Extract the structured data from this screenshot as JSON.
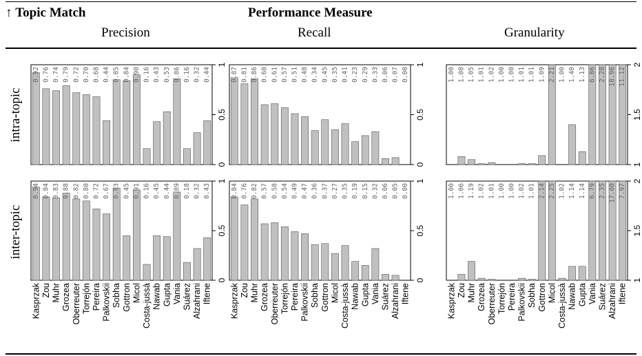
{
  "header": {
    "corner_arrow": "↑",
    "corner_label": "Topic Match",
    "group_label": "Performance Measure",
    "columns": [
      "Precision",
      "Recall",
      "Granularity"
    ]
  },
  "row_labels": [
    "intra-topic",
    "inter-topic"
  ],
  "chart_data": [
    {
      "type": "bar",
      "panel": "intra-topic / Precision",
      "categories": [
        "Kasprzak",
        "Zou",
        "Muhr",
        "Grozea",
        "Oberreuter",
        "Torrejón",
        "Pereira",
        "Palkovskii",
        "Sobha",
        "Gottron",
        "Micol",
        "Costa-jussà",
        "Nawab",
        "Gupta",
        "Vania",
        "Suárez",
        "Alzahrani",
        "Iftene"
      ],
      "values": [
        0.92,
        0.76,
        0.74,
        0.79,
        0.72,
        0.7,
        0.68,
        0.44,
        0.85,
        0.84,
        0.9,
        0.16,
        0.43,
        0.53,
        0.86,
        0.16,
        0.32,
        0.44
      ],
      "value_labels": [
        "0.92",
        "0.76",
        "0.74",
        "0.79",
        "0.72",
        "0.70",
        "0.68",
        "0.44",
        "0.85",
        "0.84",
        "0.90",
        "0.16",
        "0.43",
        "0.53",
        "0.86",
        "0.16",
        "0.32",
        "0.44"
      ],
      "ylim": [
        0,
        1
      ],
      "yticks": [
        "0",
        "0.5",
        "1"
      ]
    },
    {
      "type": "bar",
      "panel": "intra-topic / Recall",
      "categories": [
        "Kasprzak",
        "Zou",
        "Muhr",
        "Grozea",
        "Oberreuter",
        "Torrejón",
        "Pereira",
        "Palkovskii",
        "Sobha",
        "Gottron",
        "Micol",
        "Costa-jussà",
        "Nawab",
        "Gupta",
        "Vania",
        "Suárez",
        "Alzahrani",
        "Iftene"
      ],
      "values": [
        0.87,
        0.81,
        0.86,
        0.6,
        0.61,
        0.57,
        0.51,
        0.48,
        0.34,
        0.45,
        0.35,
        0.41,
        0.23,
        0.29,
        0.33,
        0.06,
        0.07,
        0.0
      ],
      "value_labels": [
        "0.87",
        "0.81",
        "0.86",
        "0.60",
        "0.61",
        "0.57",
        "0.51",
        "0.48",
        "0.34",
        "0.45",
        "0.35",
        "0.41",
        "0.23",
        "0.29",
        "0.33",
        "0.06",
        "0.07",
        "0.00"
      ],
      "ylim": [
        0,
        1
      ],
      "yticks": [
        "0",
        "0.5",
        "1"
      ]
    },
    {
      "type": "bar",
      "panel": "intra-topic / Granularity",
      "categories": [
        "Kasprzak",
        "Zou",
        "Muhr",
        "Grozea",
        "Oberreuter",
        "Torrejón",
        "Pereira",
        "Palkovskii",
        "Sobha",
        "Gottron",
        "Micol",
        "Costa-jussà",
        "Nawab",
        "Gupta",
        "Vania",
        "Suárez",
        "Alzahrani",
        "Iftene"
      ],
      "values": [
        1.0,
        1.08,
        1.05,
        1.01,
        1.02,
        1.0,
        1.0,
        1.01,
        1.01,
        1.09,
        2.21,
        1.0,
        1.4,
        1.13,
        6.86,
        2.28,
        18.96,
        11.12
      ],
      "value_labels": [
        "1.00",
        "1.08",
        "1.05",
        "1.01",
        "1.02",
        "1.00",
        "1.00",
        "1.01",
        "1.01",
        "1.09",
        "2.21",
        "1.00",
        "1.40",
        "1.13",
        "6.86",
        "2.28",
        "18.96",
        "11.12"
      ],
      "ylim": [
        1,
        2
      ],
      "yticks": [
        "1",
        "1.5",
        "2"
      ]
    },
    {
      "type": "bar",
      "panel": "inter-topic / Precision",
      "categories": [
        "Kasprzak",
        "Zou",
        "Muhr",
        "Grozea",
        "Oberreuter",
        "Torrejón",
        "Pereira",
        "Palkovskii",
        "Sobha",
        "Gottron",
        "Micol",
        "Costa-jussà",
        "Nawab",
        "Gupta",
        "Vania",
        "Suárez",
        "Alzahrani",
        "Iftene"
      ],
      "values": [
        0.94,
        0.84,
        0.83,
        0.88,
        0.82,
        0.8,
        0.72,
        0.67,
        0.93,
        0.45,
        0.91,
        0.16,
        0.45,
        0.44,
        0.89,
        0.18,
        0.32,
        0.43
      ],
      "value_labels": [
        "0.94",
        "0.84",
        "0.83",
        "0.88",
        "0.82",
        "0.80",
        "0.72",
        "0.67",
        "0.93",
        "0.45",
        "0.91",
        "0.16",
        "0.45",
        "0.44",
        "0.89",
        "0.18",
        "0.32",
        "0.43"
      ],
      "ylim": [
        0,
        1
      ],
      "yticks": [
        "0",
        "0.5",
        "1"
      ]
    },
    {
      "type": "bar",
      "panel": "inter-topic / Recall",
      "categories": [
        "Kasprzak",
        "Zou",
        "Muhr",
        "Grozea",
        "Oberreuter",
        "Torrejón",
        "Pereira",
        "Palkovskii",
        "Sobha",
        "Gottron",
        "Micol",
        "Costa-jussà",
        "Nawab",
        "Gupta",
        "Vania",
        "Suárez",
        "Alzahrani",
        "Iftene"
      ],
      "values": [
        0.84,
        0.76,
        0.82,
        0.57,
        0.58,
        0.54,
        0.49,
        0.47,
        0.36,
        0.37,
        0.27,
        0.35,
        0.19,
        0.15,
        0.32,
        0.06,
        0.05,
        0.0
      ],
      "value_labels": [
        "0.84",
        "0.76",
        "0.82",
        "0.57",
        "0.58",
        "0.54",
        "0.49",
        "0.47",
        "0.36",
        "0.37",
        "0.27",
        "0.35",
        "0.19",
        "0.15",
        "0.32",
        "0.06",
        "0.05",
        "0.00"
      ],
      "ylim": [
        0,
        1
      ],
      "yticks": [
        "0",
        "0.5",
        "1"
      ]
    },
    {
      "type": "bar",
      "panel": "inter-topic / Granularity",
      "categories": [
        "Kasprzak",
        "Zou",
        "Muhr",
        "Grozea",
        "Oberreuter",
        "Torrejón",
        "Pereira",
        "Palkovskii",
        "Sobha",
        "Gottron",
        "Micol",
        "Costa-jussà",
        "Nawab",
        "Gupta",
        "Vania",
        "Suárez",
        "Alzahrani",
        "Iftene"
      ],
      "values": [
        1.0,
        1.06,
        1.19,
        1.02,
        1.01,
        1.0,
        1.0,
        1.02,
        1.01,
        2.14,
        2.25,
        1.02,
        1.14,
        1.14,
        6.79,
        2.35,
        17.0,
        7.97
      ],
      "value_labels": [
        "1.00",
        "1.06",
        "1.19",
        "1.02",
        "1.01",
        "1.00",
        "1.00",
        "1.02",
        "1.01",
        "2.14",
        "2.25",
        "1.02",
        "1.14",
        "1.14",
        "6.79",
        "2.35",
        "17.00",
        "7.97"
      ],
      "ylim": [
        1,
        2
      ],
      "yticks": [
        "1",
        "1.5",
        "2"
      ]
    }
  ]
}
